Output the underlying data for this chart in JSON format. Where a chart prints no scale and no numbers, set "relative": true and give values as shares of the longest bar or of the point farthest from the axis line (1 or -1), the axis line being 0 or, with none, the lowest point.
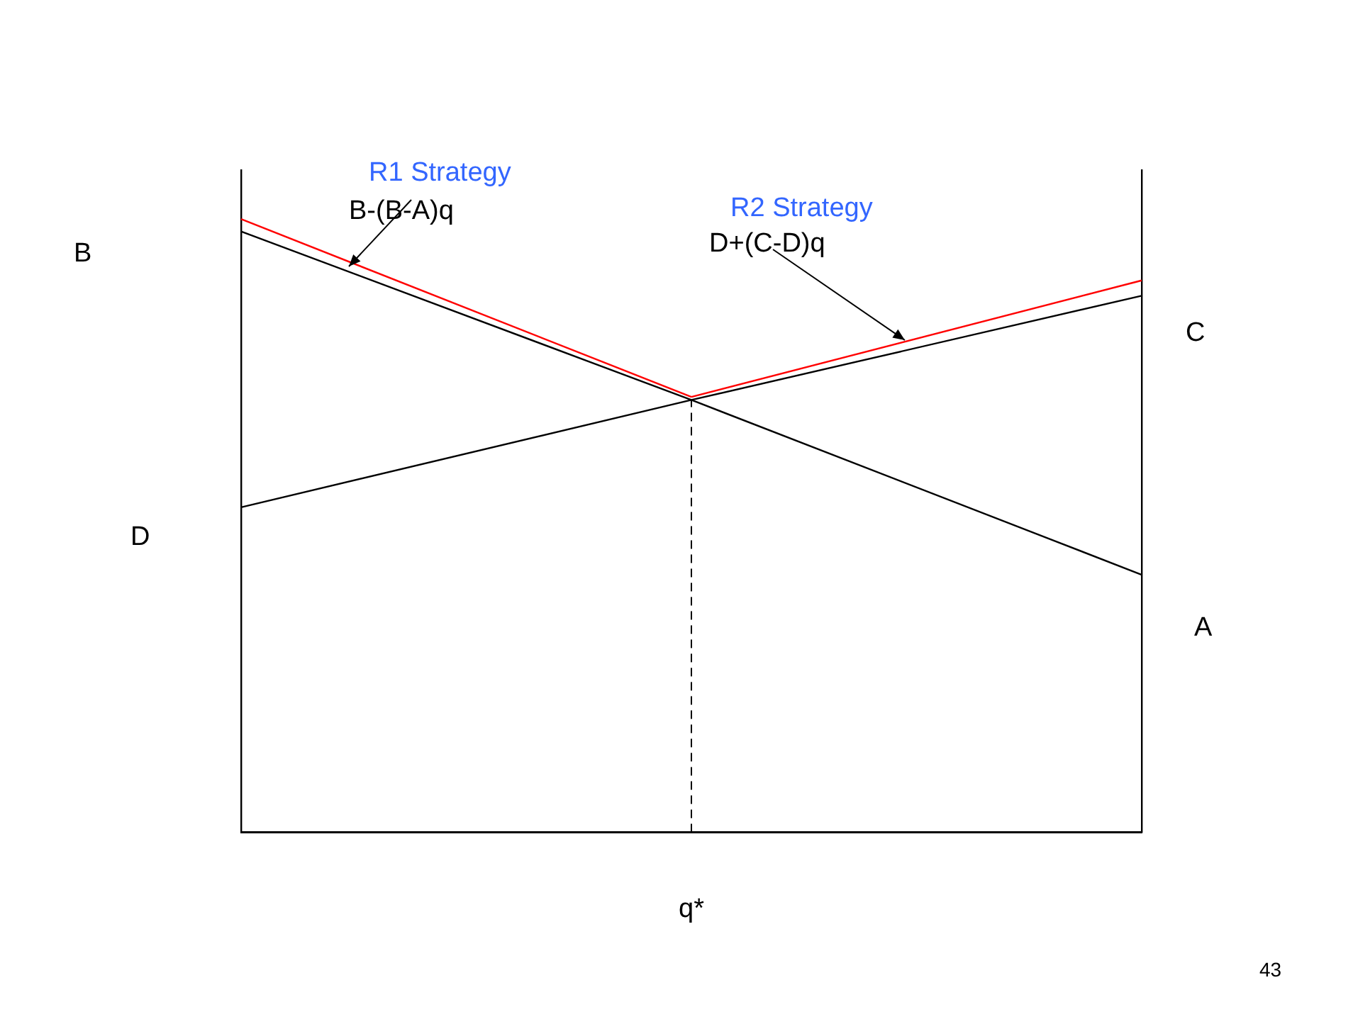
{
  "chart_data": {
    "type": "line",
    "relative": true,
    "categories": [
      null,
      null,
      null
    ],
    "series": [
      {
        "color": "#000000",
        "values": [
          0.98,
          0.705,
          0.42
        ]
      },
      {
        "color": "#000000",
        "values": [
          0.53,
          0.705,
          0.875
        ]
      },
      {
        "color": "#ff0000",
        "values": [
          1,
          0.71,
          null
        ]
      },
      {
        "color": "#ff0000",
        "values": [
          null,
          0.71,
          0.9
        ]
      }
    ],
    "ref_lines": [
      {
        "axis": "x",
        "label": "q*",
        "line_style": "dashed",
        "color": "#000000"
      }
    ],
    "annotations": [
      "R1 Strategy",
      "B-(B-A)q",
      "R2 Strategy",
      "D+(C-D)q",
      "B",
      "C",
      "D",
      "A",
      "43"
    ],
    "grid": false,
    "legend": false,
    "marker": "none",
    "line_style": "solid"
  }
}
